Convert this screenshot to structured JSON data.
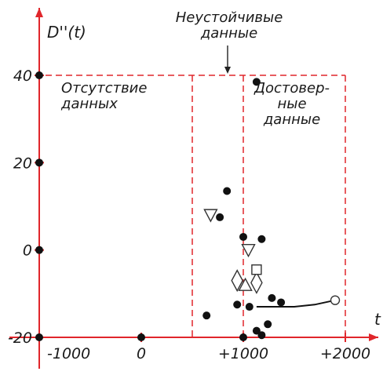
{
  "chart_data": {
    "type": "scatter",
    "ylabel": "D''(t)",
    "xlabel": "t",
    "x_ticks": [
      {
        "value": -1000,
        "label": "-1000"
      },
      {
        "value": 0,
        "label": "0"
      },
      {
        "value": 1000,
        "label": "+1000"
      },
      {
        "value": 2000,
        "label": "+2000"
      }
    ],
    "y_ticks": [
      {
        "value": -20,
        "label": "-20"
      },
      {
        "value": 0,
        "label": "0"
      },
      {
        "value": 20,
        "label": "20"
      },
      {
        "value": 40,
        "label": "40"
      }
    ],
    "xlim": [
      -1290,
      2400
    ],
    "ylim": [
      -22,
      54
    ],
    "regions": [
      {
        "name": "Отсутствие данных",
        "lines": [
          "Отсутствие",
          "данных"
        ],
        "x_range": [
          -1000,
          500
        ]
      },
      {
        "name": "Неустойчивые данные",
        "lines": [
          "Неустойчивые",
          "данные"
        ],
        "x_range": [
          500,
          1000
        ]
      },
      {
        "name": "Достоверные данные",
        "lines": [
          "Достовер-",
          "ные",
          "данные"
        ],
        "x_range": [
          1000,
          2000
        ]
      }
    ],
    "region_top": 40,
    "points_filled": [
      [
        -1000,
        40
      ],
      [
        -1000,
        20
      ],
      [
        -1000,
        0
      ],
      [
        -1000,
        -20
      ],
      [
        0,
        -20
      ],
      [
        1000,
        -20
      ],
      [
        1130,
        38.5
      ],
      [
        840,
        13.5
      ],
      [
        770,
        7.5
      ],
      [
        1000,
        3
      ],
      [
        1180,
        2.5
      ],
      [
        640,
        -15
      ],
      [
        940,
        -12.5
      ],
      [
        1060,
        -13
      ],
      [
        1280,
        -11
      ],
      [
        1370,
        -12
      ],
      [
        1240,
        -17
      ],
      [
        1130,
        -18.5
      ],
      [
        1180,
        -19.5
      ]
    ],
    "points_triangle_down": [
      [
        680,
        8
      ],
      [
        1050,
        0
      ]
    ],
    "points_triangle_up": [
      [
        1020,
        -8
      ]
    ],
    "points_diamond": [
      [
        940,
        -7
      ],
      [
        1130,
        -7.5
      ]
    ],
    "points_square": [
      [
        1130,
        -4.5
      ]
    ],
    "points_open_circle": [
      [
        1900,
        -11.5
      ]
    ],
    "trend_curve": [
      [
        1130,
        -13
      ],
      [
        1500,
        -13
      ],
      [
        1700,
        -12.5
      ],
      [
        1900,
        -11.5
      ]
    ]
  }
}
